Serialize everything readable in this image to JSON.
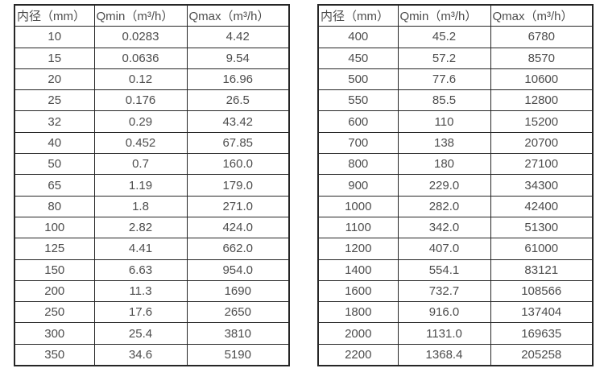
{
  "colors": {
    "border": "#262626",
    "text": "#4d4d4d",
    "background": "#ffffff"
  },
  "tables": [
    {
      "id": "left",
      "headers": [
        "内径（mm）",
        "Qmin（m³/h）",
        "Qmax（m³/h）"
      ],
      "rows": [
        [
          "10",
          "0.0283",
          "4.42"
        ],
        [
          "15",
          "0.0636",
          "9.54"
        ],
        [
          "20",
          "0.12",
          "16.96"
        ],
        [
          "25",
          "0.176",
          "26.5"
        ],
        [
          "32",
          "0.29",
          "43.42"
        ],
        [
          "40",
          "0.452",
          "67.85"
        ],
        [
          "50",
          "0.7",
          "160.0"
        ],
        [
          "65",
          "1.19",
          "179.0"
        ],
        [
          "80",
          "1.8",
          "271.0"
        ],
        [
          "100",
          "2.82",
          "424.0"
        ],
        [
          "125",
          "4.41",
          "662.0"
        ],
        [
          "150",
          "6.63",
          "954.0"
        ],
        [
          "200",
          "11.3",
          "1690"
        ],
        [
          "250",
          "17.6",
          "2650"
        ],
        [
          "300",
          "25.4",
          "3810"
        ],
        [
          "350",
          "34.6",
          "5190"
        ]
      ]
    },
    {
      "id": "right",
      "headers": [
        "内径（mm）",
        "Qmin（m³/h）",
        "Qmax（m³/h）"
      ],
      "rows": [
        [
          "400",
          "45.2",
          "6780"
        ],
        [
          "450",
          "57.2",
          "8570"
        ],
        [
          "500",
          "77.6",
          "10600"
        ],
        [
          "550",
          "85.5",
          "12800"
        ],
        [
          "600",
          "110",
          "15200"
        ],
        [
          "700",
          "138",
          "20700"
        ],
        [
          "800",
          "180",
          "27100"
        ],
        [
          "900",
          "229.0",
          "34300"
        ],
        [
          "1000",
          "282.0",
          "42400"
        ],
        [
          "1100",
          "342.0",
          "51300"
        ],
        [
          "1200",
          "407.0",
          "61000"
        ],
        [
          "1400",
          "554.1",
          "83121"
        ],
        [
          "1600",
          "732.7",
          "108566"
        ],
        [
          "1800",
          "916.0",
          "137404"
        ],
        [
          "2000",
          "1131.0",
          "169635"
        ],
        [
          "2200",
          "1368.4",
          "205258"
        ]
      ]
    }
  ]
}
